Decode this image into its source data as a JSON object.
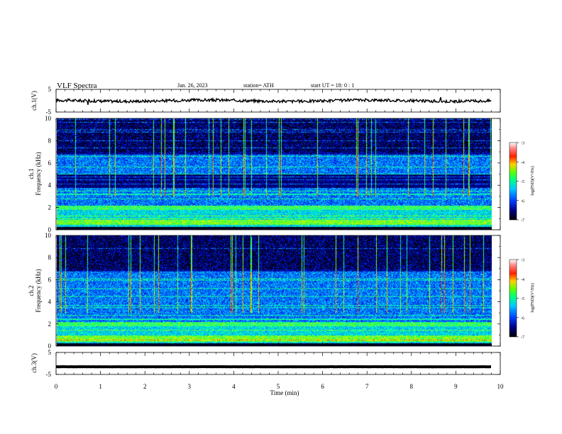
{
  "header": {
    "title": "VLF  Spectra",
    "date": "Jan. 26, 2023",
    "station": "station= ATH",
    "start": "start  UT  =   18: 0  : 1"
  },
  "chart_data": {
    "type": "heatmap",
    "x_axis": {
      "label": "Time  (min)",
      "range": [
        0,
        10
      ],
      "ticks": [
        "0",
        "1",
        "2",
        "3",
        "4",
        "5",
        "6",
        "7",
        "8",
        "9",
        "10"
      ]
    },
    "panels": [
      {
        "id": "ch1-waveform",
        "type": "line",
        "ylabel": "ch.1(V)",
        "ylim": [
          -5,
          5
        ],
        "ytick_labels": [
          "5",
          "-5"
        ],
        "baseline": 0,
        "amplitude": 0.9,
        "x_end": 9.8,
        "color": "#000000"
      },
      {
        "id": "ch1-spectrogram",
        "type": "heatmap",
        "ylabel": "ch.1\nFrequency  (kHz)",
        "ylim": [
          0,
          10
        ],
        "ytick_labels": [
          "0",
          "2",
          "4",
          "6",
          "8",
          "10"
        ],
        "x_end": 9.8,
        "colorbar": {
          "label": "log(PSD)(V²/Hz)",
          "range": [
            -7,
            -3
          ],
          "tick_labels": [
            "-3",
            "-4",
            "-5",
            "-6",
            "-7"
          ]
        }
      },
      {
        "id": "ch2-spectrogram",
        "type": "heatmap",
        "ylabel": "ch.2\nFrequency  (kHz)",
        "ylim": [
          0,
          10
        ],
        "ytick_labels": [
          "0",
          "2",
          "4",
          "6",
          "8",
          "10"
        ],
        "x_end": 9.8,
        "colorbar": {
          "label": "log(PSD)(V²/Hz)",
          "range": [
            -7,
            -3
          ],
          "tick_labels": [
            "-3",
            "-4",
            "-5",
            "-6",
            "-7"
          ]
        }
      },
      {
        "id": "ch3-waveform",
        "type": "line",
        "ylabel": "ch.3(V)",
        "ylim": [
          -5,
          5
        ],
        "ytick_labels": [
          "5",
          "-5"
        ],
        "baseline": -1.5,
        "amplitude": 0.05,
        "x_end": 9.8,
        "color": "#000000"
      }
    ],
    "colormap": [
      "#000000",
      "#000050",
      "#0000c8",
      "#0050ff",
      "#00c8ff",
      "#00ffc0",
      "#30ff30",
      "#c8ff00",
      "#ffc800",
      "#ff3000",
      "#c80000",
      "#ffffff"
    ]
  }
}
